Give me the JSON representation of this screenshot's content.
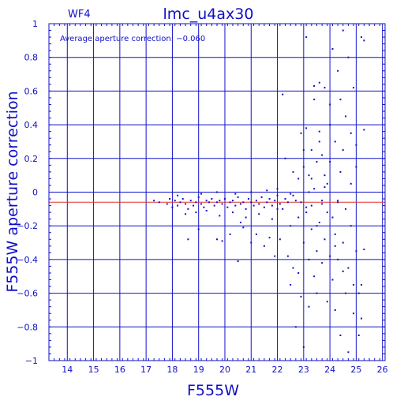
{
  "chart_data": {
    "type": "scatter",
    "title": "lmc_u4ax30",
    "corner_label": "WF4",
    "annotation": "Average aperture correction: −0.060",
    "xlabel": "F555W",
    "ylabel": "F555W aperture correction",
    "xlim": [
      13.3,
      26.1
    ],
    "ylim": [
      -1,
      1
    ],
    "xticks": [
      14,
      15,
      16,
      17,
      18,
      19,
      20,
      21,
      22,
      23,
      24,
      25,
      26
    ],
    "yticks": [
      -1,
      -0.8,
      -0.6,
      -0.4,
      -0.2,
      0,
      0.2,
      0.4,
      0.6,
      0.8,
      1
    ],
    "ytick_labels": [
      "−1",
      "−0.8",
      "−0.6",
      "−0.4",
      "−0.2",
      "0",
      "0.2",
      "0.4",
      "0.6",
      "0.8",
      "1"
    ],
    "grid": true,
    "reference_line": {
      "y": -0.06,
      "color": "#e03030"
    },
    "point_color": "#1010c8",
    "axis_color": "#1010c8",
    "points": [
      [
        17.3,
        -0.05
      ],
      [
        17.5,
        -0.06
      ],
      [
        17.8,
        -0.07
      ],
      [
        17.9,
        -0.04
      ],
      [
        18.0,
        -0.09
      ],
      [
        18.1,
        -0.05
      ],
      [
        18.2,
        -0.08
      ],
      [
        18.3,
        -0.06
      ],
      [
        18.4,
        -0.04
      ],
      [
        18.5,
        -0.07
      ],
      [
        18.6,
        -0.1
      ],
      [
        18.7,
        -0.05
      ],
      [
        18.8,
        -0.08
      ],
      [
        18.9,
        -0.06
      ],
      [
        19.0,
        -0.03
      ],
      [
        19.1,
        -0.07
      ],
      [
        19.2,
        -0.09
      ],
      [
        19.3,
        -0.05
      ],
      [
        19.4,
        -0.06
      ],
      [
        19.5,
        -0.04
      ],
      [
        19.6,
        -0.08
      ],
      [
        19.7,
        -0.06
      ],
      [
        19.8,
        -0.05
      ],
      [
        19.9,
        -0.07
      ],
      [
        20.0,
        -0.04
      ],
      [
        20.1,
        -0.09
      ],
      [
        20.2,
        -0.06
      ],
      [
        20.3,
        -0.05
      ],
      [
        20.4,
        -0.08
      ],
      [
        20.5,
        -0.03
      ],
      [
        20.6,
        -0.07
      ],
      [
        20.7,
        -0.06
      ],
      [
        20.8,
        -0.1
      ],
      [
        20.9,
        -0.04
      ],
      [
        21.0,
        -0.06
      ],
      [
        21.1,
        -0.08
      ],
      [
        21.2,
        -0.05
      ],
      [
        21.3,
        -0.07
      ],
      [
        21.4,
        -0.03
      ],
      [
        21.5,
        -0.09
      ],
      [
        21.6,
        -0.06
      ],
      [
        21.7,
        -0.04
      ],
      [
        21.8,
        -0.08
      ],
      [
        21.9,
        -0.05
      ],
      [
        22.0,
        -0.02
      ],
      [
        22.1,
        -0.07
      ],
      [
        22.2,
        -0.1
      ],
      [
        22.3,
        -0.04
      ],
      [
        22.4,
        -0.06
      ],
      [
        22.5,
        -0.01
      ],
      [
        18.5,
        -0.13
      ],
      [
        18.9,
        -0.12
      ],
      [
        19.3,
        -0.11
      ],
      [
        19.8,
        -0.14
      ],
      [
        20.3,
        -0.12
      ],
      [
        20.8,
        -0.15
      ],
      [
        21.3,
        -0.13
      ],
      [
        21.8,
        -0.16
      ],
      [
        18.2,
        -0.02
      ],
      [
        19.1,
        -0.01
      ],
      [
        19.7,
        0.0
      ],
      [
        20.4,
        -0.01
      ],
      [
        21.0,
        0.0
      ],
      [
        21.6,
        0.01
      ],
      [
        22.0,
        0.02
      ],
      [
        18.6,
        -0.28
      ],
      [
        19.0,
        -0.22
      ],
      [
        19.7,
        -0.28
      ],
      [
        19.9,
        -0.29
      ],
      [
        20.2,
        -0.25
      ],
      [
        20.5,
        -0.41
      ],
      [
        20.6,
        -0.18
      ],
      [
        20.7,
        -0.21
      ],
      [
        21.0,
        -0.3
      ],
      [
        21.2,
        -0.25
      ],
      [
        21.5,
        -0.32
      ],
      [
        21.7,
        -0.27
      ],
      [
        21.9,
        -0.38
      ],
      [
        22.0,
        -0.1
      ],
      [
        22.1,
        -0.28
      ],
      [
        22.2,
        0.58
      ],
      [
        22.3,
        0.2
      ],
      [
        22.4,
        -0.38
      ],
      [
        22.5,
        -0.55
      ],
      [
        22.5,
        -0.2
      ],
      [
        22.6,
        0.12
      ],
      [
        22.6,
        -0.45
      ],
      [
        22.7,
        -0.8
      ],
      [
        22.7,
        -0.05
      ],
      [
        22.8,
        0.08
      ],
      [
        22.8,
        -0.15
      ],
      [
        22.9,
        0.35
      ],
      [
        22.9,
        -0.62
      ],
      [
        23.0,
        0.15
      ],
      [
        23.0,
        -0.92
      ],
      [
        23.0,
        -0.3
      ],
      [
        23.1,
        0.92
      ],
      [
        23.1,
        0.38
      ],
      [
        23.1,
        -0.12
      ],
      [
        23.2,
        0.1
      ],
      [
        23.2,
        -0.4
      ],
      [
        23.2,
        -0.68
      ],
      [
        23.3,
        0.25
      ],
      [
        23.3,
        -0.08
      ],
      [
        23.3,
        -0.22
      ],
      [
        23.4,
        0.55
      ],
      [
        23.4,
        -0.5
      ],
      [
        23.4,
        0.02
      ],
      [
        23.5,
        0.18
      ],
      [
        23.5,
        -0.35
      ],
      [
        23.5,
        -0.6
      ],
      [
        23.6,
        0.65
      ],
      [
        23.6,
        0.3
      ],
      [
        23.6,
        -0.18
      ],
      [
        23.7,
        -0.05
      ],
      [
        23.7,
        -0.42
      ],
      [
        23.7,
        0.22
      ],
      [
        23.8,
        0.62
      ],
      [
        23.8,
        -0.28
      ],
      [
        23.8,
        0.1
      ],
      [
        23.9,
        -0.65
      ],
      [
        23.9,
        0.05
      ],
      [
        23.9,
        -0.12
      ],
      [
        24.0,
        0.4
      ],
      [
        24.0,
        -0.38
      ],
      [
        24.0,
        0.18
      ],
      [
        24.1,
        0.85
      ],
      [
        24.1,
        -0.15
      ],
      [
        24.1,
        -0.52
      ],
      [
        24.2,
        0.3
      ],
      [
        24.2,
        -0.25
      ],
      [
        24.2,
        -0.7
      ],
      [
        24.3,
        0.72
      ],
      [
        24.3,
        -0.05
      ],
      [
        24.3,
        -0.4
      ],
      [
        24.4,
        0.55
      ],
      [
        24.4,
        -0.85
      ],
      [
        24.4,
        0.12
      ],
      [
        24.5,
        0.96
      ],
      [
        24.5,
        -0.3
      ],
      [
        24.5,
        0.25
      ],
      [
        24.6,
        -0.6
      ],
      [
        24.6,
        0.45
      ],
      [
        24.6,
        -0.1
      ],
      [
        24.7,
        0.8
      ],
      [
        24.7,
        -0.45
      ],
      [
        24.7,
        -0.95
      ],
      [
        24.8,
        0.35
      ],
      [
        24.8,
        -0.2
      ],
      [
        24.8,
        0.05
      ],
      [
        24.9,
        -0.55
      ],
      [
        24.9,
        0.62
      ],
      [
        24.9,
        -0.72
      ],
      [
        25.0,
        0.15
      ],
      [
        25.0,
        -0.35
      ],
      [
        25.0,
        0.28
      ],
      [
        25.1,
        -0.6
      ],
      [
        25.1,
        -0.85
      ],
      [
        25.2,
        -0.55
      ],
      [
        25.2,
        0.92
      ],
      [
        25.3,
        0.9
      ],
      [
        25.3,
        0.37
      ],
      [
        25.3,
        -0.34
      ],
      [
        25.2,
        -0.75
      ],
      [
        23.0,
        0.25
      ],
      [
        23.4,
        0.63
      ],
      [
        23.6,
        0.36
      ],
      [
        24.0,
        0.52
      ],
      [
        23.3,
        0.08
      ],
      [
        22.8,
        -0.48
      ],
      [
        23.5,
        -0.2
      ],
      [
        24.2,
        -0.32
      ],
      [
        24.5,
        -0.47
      ],
      [
        23.8,
        0.03
      ],
      [
        23.2,
        0.0
      ],
      [
        22.6,
        -0.02
      ],
      [
        22.9,
        -0.06
      ],
      [
        23.1,
        -0.09
      ],
      [
        23.7,
        -0.07
      ],
      [
        24.3,
        -0.06
      ]
    ]
  }
}
